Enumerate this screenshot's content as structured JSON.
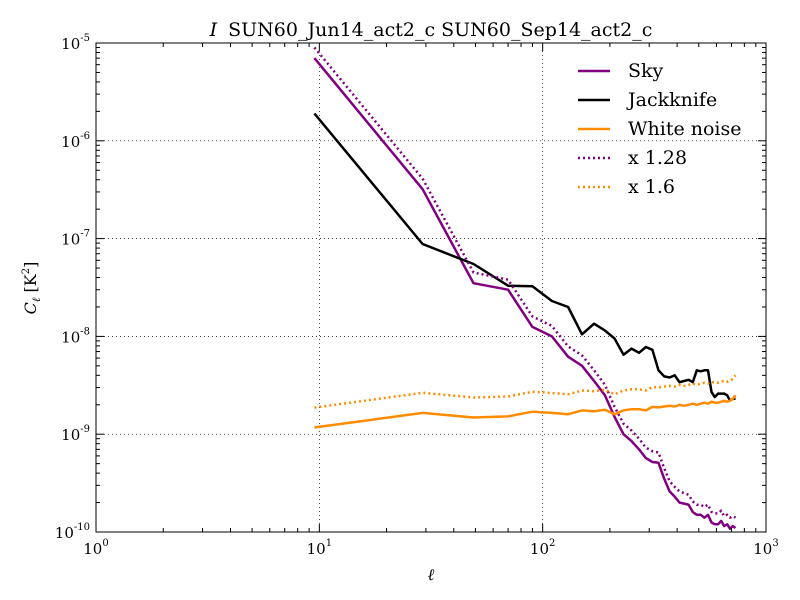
{
  "chart_data": {
    "type": "line",
    "title_italic": "I",
    "title": "SUN60_Jun14_act2_c SUN60_Sep14_act2_c",
    "xlabel": "ℓ",
    "ylabel_main": "C",
    "ylabel_sub": "ℓ",
    "ylabel_unit_open": " [K",
    "ylabel_unit_exp": "2",
    "ylabel_unit_close": "]",
    "xscale": "log",
    "yscale": "log",
    "xlim": [
      1,
      1000
    ],
    "ylim": [
      1e-10,
      1e-05
    ],
    "grid": true,
    "legend_position": "top-right",
    "x_ticks": [
      {
        "base": "10",
        "exp": "0",
        "value": 1
      },
      {
        "base": "10",
        "exp": "1",
        "value": 10
      },
      {
        "base": "10",
        "exp": "2",
        "value": 100
      },
      {
        "base": "10",
        "exp": "3",
        "value": 1000
      }
    ],
    "y_ticks": [
      {
        "base": "10",
        "exp": "-10",
        "value": 1e-10
      },
      {
        "base": "10",
        "exp": "-9",
        "value": 1e-09
      },
      {
        "base": "10",
        "exp": "-8",
        "value": 1e-08
      },
      {
        "base": "10",
        "exp": "-7",
        "value": 1e-07
      },
      {
        "base": "10",
        "exp": "-6",
        "value": 1e-06
      },
      {
        "base": "10",
        "exp": "-5",
        "value": 1e-05
      }
    ],
    "series": [
      {
        "name": "Sky",
        "color": "#800080",
        "style": "solid",
        "x": [
          9.5,
          29,
          49,
          70,
          90,
          110,
          130,
          150,
          170,
          190,
          210,
          230,
          250,
          270,
          290,
          310,
          330,
          350,
          370,
          390,
          410,
          430,
          450,
          470,
          490,
          510,
          530,
          550,
          570,
          590,
          610,
          630,
          650,
          670,
          690,
          710,
          730
        ],
        "y": [
          7e-06,
          3.2e-07,
          3.5e-08,
          3e-08,
          1.25e-08,
          1e-08,
          6.2e-09,
          5e-09,
          3.5e-09,
          2.5e-09,
          1.5e-09,
          1e-09,
          8.5e-10,
          7e-10,
          5.7e-10,
          5.2e-10,
          5.1e-10,
          3.5e-10,
          2.6e-10,
          2.3e-10,
          2e-10,
          1.95e-10,
          1.9e-10,
          1.6e-10,
          1.5e-10,
          1.5e-10,
          1.4e-10,
          1.5e-10,
          1.25e-10,
          1.2e-10,
          1.2e-10,
          1.3e-10,
          1.15e-10,
          1.2e-10,
          1.08e-10,
          1.15e-10,
          1.1e-10
        ]
      },
      {
        "name": "Jackknife",
        "color": "#000000",
        "style": "solid",
        "x": [
          9.5,
          29,
          49,
          70,
          90,
          110,
          130,
          150,
          170,
          190,
          210,
          230,
          250,
          270,
          290,
          310,
          330,
          350,
          370,
          390,
          410,
          430,
          450,
          470,
          490,
          510,
          530,
          550,
          570,
          590,
          610,
          630,
          650,
          670,
          690,
          710,
          730
        ],
        "y": [
          1.9e-06,
          8.8e-08,
          5.5e-08,
          3.3e-08,
          3.25e-08,
          2.3e-08,
          2e-08,
          1.05e-08,
          1.35e-08,
          1.15e-08,
          9.5e-09,
          6.5e-09,
          7.5e-09,
          6.8e-09,
          7.8e-09,
          7.3e-09,
          4.5e-09,
          3.9e-09,
          3.8e-09,
          4e-09,
          3.4e-09,
          3.5e-09,
          3.6e-09,
          3.4e-09,
          4.5e-09,
          4.4e-09,
          4.5e-09,
          4.5e-09,
          2.7e-09,
          2.4e-09,
          2.6e-09,
          2.6e-09,
          2.6e-09,
          2.5e-09,
          2.2e-09,
          2.3e-09,
          2.3e-09
        ]
      },
      {
        "name": "White noise",
        "color": "#ff8c00",
        "style": "solid",
        "x": [
          9.5,
          29,
          49,
          70,
          90,
          110,
          130,
          150,
          170,
          190,
          210,
          230,
          250,
          270,
          290,
          310,
          330,
          350,
          370,
          390,
          410,
          430,
          450,
          470,
          490,
          510,
          530,
          550,
          570,
          590,
          610,
          630,
          650,
          670,
          690,
          710,
          730
        ],
        "y": [
          1.17e-09,
          1.65e-09,
          1.48e-09,
          1.52e-09,
          1.7e-09,
          1.65e-09,
          1.6e-09,
          1.75e-09,
          1.72e-09,
          1.78e-09,
          1.6e-09,
          1.75e-09,
          1.8e-09,
          1.8e-09,
          1.75e-09,
          1.9e-09,
          1.88e-09,
          1.92e-09,
          1.95e-09,
          1.92e-09,
          2e-09,
          1.95e-09,
          2e-09,
          2.05e-09,
          2e-09,
          2.05e-09,
          2.1e-09,
          2.05e-09,
          2.15e-09,
          2.1e-09,
          2.1e-09,
          2.15e-09,
          2.2e-09,
          2.15e-09,
          2.2e-09,
          2.3e-09,
          2.5e-09
        ]
      },
      {
        "name": "x 1.28",
        "color": "#800080",
        "style": "dotted",
        "x": [
          9.5,
          29,
          49,
          70,
          90,
          110,
          130,
          150,
          170,
          190,
          210,
          230,
          250,
          270,
          290,
          310,
          330,
          350,
          370,
          390,
          410,
          430,
          450,
          470,
          490,
          510,
          530,
          550,
          570,
          590,
          610,
          630,
          650,
          670,
          690,
          710,
          730
        ],
        "y": [
          9e-06,
          4.1e-07,
          4.5e-08,
          3.8e-08,
          1.6e-08,
          1.28e-08,
          7.9e-09,
          6.4e-09,
          4.5e-09,
          3.2e-09,
          1.9e-09,
          1.28e-09,
          1.09e-09,
          9e-10,
          7.3e-10,
          6.7e-10,
          6.5e-10,
          4.5e-10,
          3.3e-10,
          2.9e-10,
          2.6e-10,
          2.5e-10,
          2.4e-10,
          2.05e-10,
          1.9e-10,
          1.9e-10,
          1.8e-10,
          1.9e-10,
          1.6e-10,
          1.55e-10,
          1.55e-10,
          1.65e-10,
          1.45e-10,
          1.5e-10,
          1.4e-10,
          1.45e-10,
          1.4e-10
        ]
      },
      {
        "name": "x 1.6",
        "color": "#ff8c00",
        "style": "dotted",
        "x": [
          9.5,
          29,
          49,
          70,
          90,
          110,
          130,
          150,
          170,
          190,
          210,
          230,
          250,
          270,
          290,
          310,
          330,
          350,
          370,
          390,
          410,
          430,
          450,
          470,
          490,
          510,
          530,
          550,
          570,
          590,
          610,
          630,
          650,
          670,
          690,
          710,
          730
        ],
        "y": [
          1.87e-09,
          2.65e-09,
          2.37e-09,
          2.43e-09,
          2.72e-09,
          2.64e-09,
          2.56e-09,
          2.8e-09,
          2.75e-09,
          2.85e-09,
          2.56e-09,
          2.8e-09,
          2.88e-09,
          2.88e-09,
          2.8e-09,
          3.04e-09,
          3e-09,
          3.07e-09,
          3.12e-09,
          3.07e-09,
          3.2e-09,
          3.12e-09,
          3.2e-09,
          3.28e-09,
          3.2e-09,
          3.28e-09,
          3.36e-09,
          3.28e-09,
          3.44e-09,
          3.36e-09,
          3.36e-09,
          3.44e-09,
          3.52e-09,
          3.44e-09,
          3.52e-09,
          3.68e-09,
          4e-09
        ]
      }
    ]
  }
}
